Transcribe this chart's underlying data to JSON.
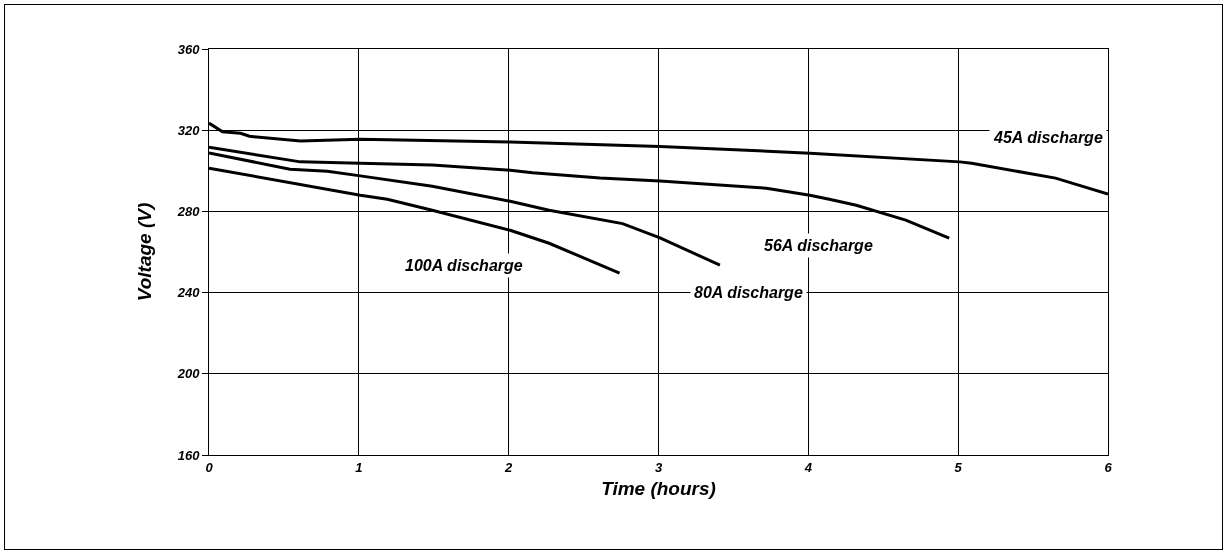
{
  "chart_data": {
    "type": "line",
    "xlabel": "Time (hours)",
    "ylabel": "Voltage (V)",
    "xlim": [
      0,
      6
    ],
    "xticks": [
      0,
      1,
      2,
      3,
      4,
      5,
      6
    ],
    "ylim": [
      160,
      360
    ],
    "yticks": [
      160,
      200,
      240,
      280,
      320,
      360
    ],
    "grid": true,
    "legend": false,
    "marker": "none",
    "line_style": "solid",
    "series": [
      {
        "name": "45A discharge",
        "color": "#000000",
        "x": [
          0,
          0.09,
          0.21,
          0.27,
          0.61,
          1.01,
          2.01,
          3.01,
          4.01,
          5.01,
          5.09,
          5.65,
          6.0
        ],
        "values": [
          323.5,
          319.2,
          318.5,
          317,
          314.7,
          315.5,
          314.2,
          312,
          308.7,
          304.4,
          303.7,
          296.4,
          288.5
        ]
      },
      {
        "name": "56A discharge",
        "color": "#000000",
        "x": [
          0,
          0.61,
          1.01,
          1.49,
          2.01,
          2.16,
          2.61,
          3.01,
          3.72,
          4.01,
          4.14,
          4.32,
          4.65,
          4.94
        ],
        "values": [
          311.6,
          304.4,
          303.7,
          302.8,
          300.3,
          299,
          296.4,
          295,
          291.4,
          288,
          286,
          283,
          275.7,
          266.8
        ]
      },
      {
        "name": "80A discharge",
        "color": "#000000",
        "x": [
          0,
          0.54,
          0.79,
          1.01,
          1.49,
          2.01,
          2.27,
          2.76,
          3.01,
          3.41
        ],
        "values": [
          308.8,
          300.8,
          299.8,
          297.5,
          292.4,
          285,
          280.6,
          274,
          267,
          253.5
        ]
      },
      {
        "name": "100A discharge",
        "color": "#000000",
        "x": [
          0,
          1.01,
          1.19,
          1.49,
          2.01,
          2.27,
          2.74
        ],
        "values": [
          301.3,
          288,
          286,
          280.6,
          270.7,
          264.3,
          249.6
        ]
      }
    ]
  }
}
